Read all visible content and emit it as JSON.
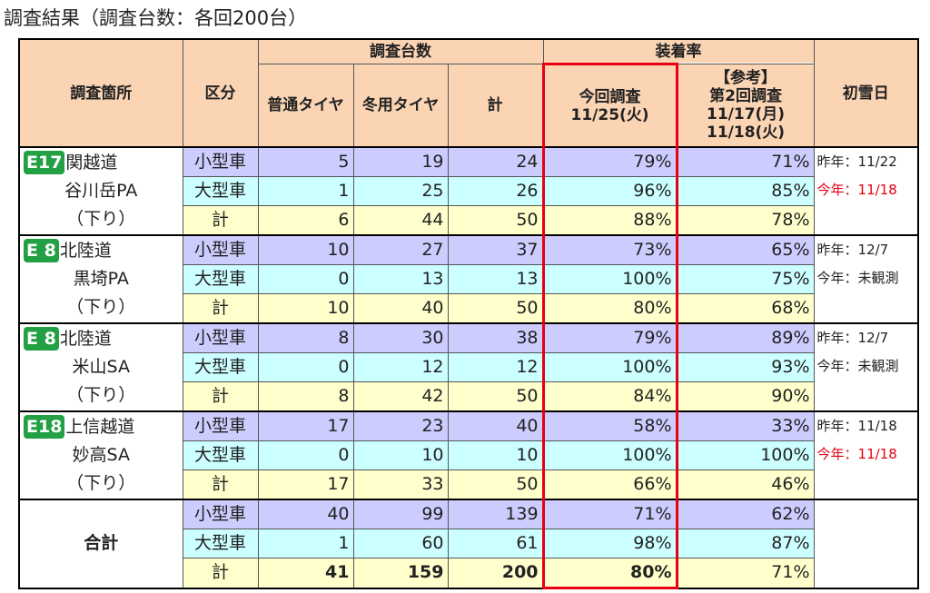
{
  "title": "調査結果（調査台数：各回200台）",
  "header": {
    "location": "調査箇所",
    "category": "区分",
    "count": "調査台数",
    "normal": "普通タイヤ",
    "winter": "冬用タイヤ",
    "total": "計",
    "rate": "装着率",
    "current": [
      "今回調査",
      "11/25(火)"
    ],
    "reference": [
      "【参考】",
      "第2回調査",
      "11/17(月)",
      "11/18(火)"
    ],
    "snow": "初雪日"
  },
  "groups": [
    {
      "badge": "E17",
      "road": "関越道",
      "place": "谷川岳PA",
      "dir": "（下り）",
      "snow": [
        {
          "text": "昨年：11/22"
        },
        {
          "text": "今年：11/18",
          "color": "#e60012"
        }
      ],
      "rows": [
        [
          "小型車",
          5,
          19,
          24,
          "79%",
          "71%"
        ],
        [
          "大型車",
          1,
          25,
          26,
          "96%",
          "85%"
        ],
        [
          "計",
          6,
          44,
          50,
          "88%",
          "78%"
        ]
      ]
    },
    {
      "badge": "E 8",
      "road": "北陸道",
      "place": "黒埼PA",
      "dir": "（下り）",
      "snow": [
        {
          "text": "昨年：12/7"
        },
        {
          "text": "今年：未観測"
        }
      ],
      "rows": [
        [
          "小型車",
          10,
          27,
          37,
          "73%",
          "65%"
        ],
        [
          "大型車",
          0,
          13,
          13,
          "100%",
          "75%"
        ],
        [
          "計",
          10,
          40,
          50,
          "80%",
          "68%"
        ]
      ]
    },
    {
      "badge": "E 8",
      "road": "北陸道",
      "place": "米山SA",
      "dir": "（下り）",
      "snow": [
        {
          "text": "昨年：12/7"
        },
        {
          "text": "今年：未観測"
        }
      ],
      "rows": [
        [
          "小型車",
          8,
          30,
          38,
          "79%",
          "89%"
        ],
        [
          "大型車",
          0,
          12,
          12,
          "100%",
          "93%"
        ],
        [
          "計",
          8,
          42,
          50,
          "84%",
          "90%"
        ]
      ]
    },
    {
      "badge": "E18",
      "road": "上信越道",
      "place": "妙高SA",
      "dir": "（下り）",
      "snow": [
        {
          "text": "昨年：11/18"
        },
        {
          "text": "今年：11/18",
          "color": "#e60012"
        }
      ],
      "rows": [
        [
          "小型車",
          17,
          23,
          40,
          "58%",
          "33%"
        ],
        [
          "大型車",
          0,
          10,
          10,
          "100%",
          "100%"
        ],
        [
          "計",
          17,
          33,
          50,
          "66%",
          "46%"
        ]
      ]
    },
    {
      "place": "合計",
      "rows": [
        [
          "小型車",
          40,
          99,
          139,
          "71%",
          "62%"
        ],
        [
          "大型車",
          1,
          60,
          61,
          "98%",
          "87%"
        ],
        [
          "計",
          41,
          159,
          200,
          "80%",
          "71%"
        ]
      ]
    }
  ]
}
